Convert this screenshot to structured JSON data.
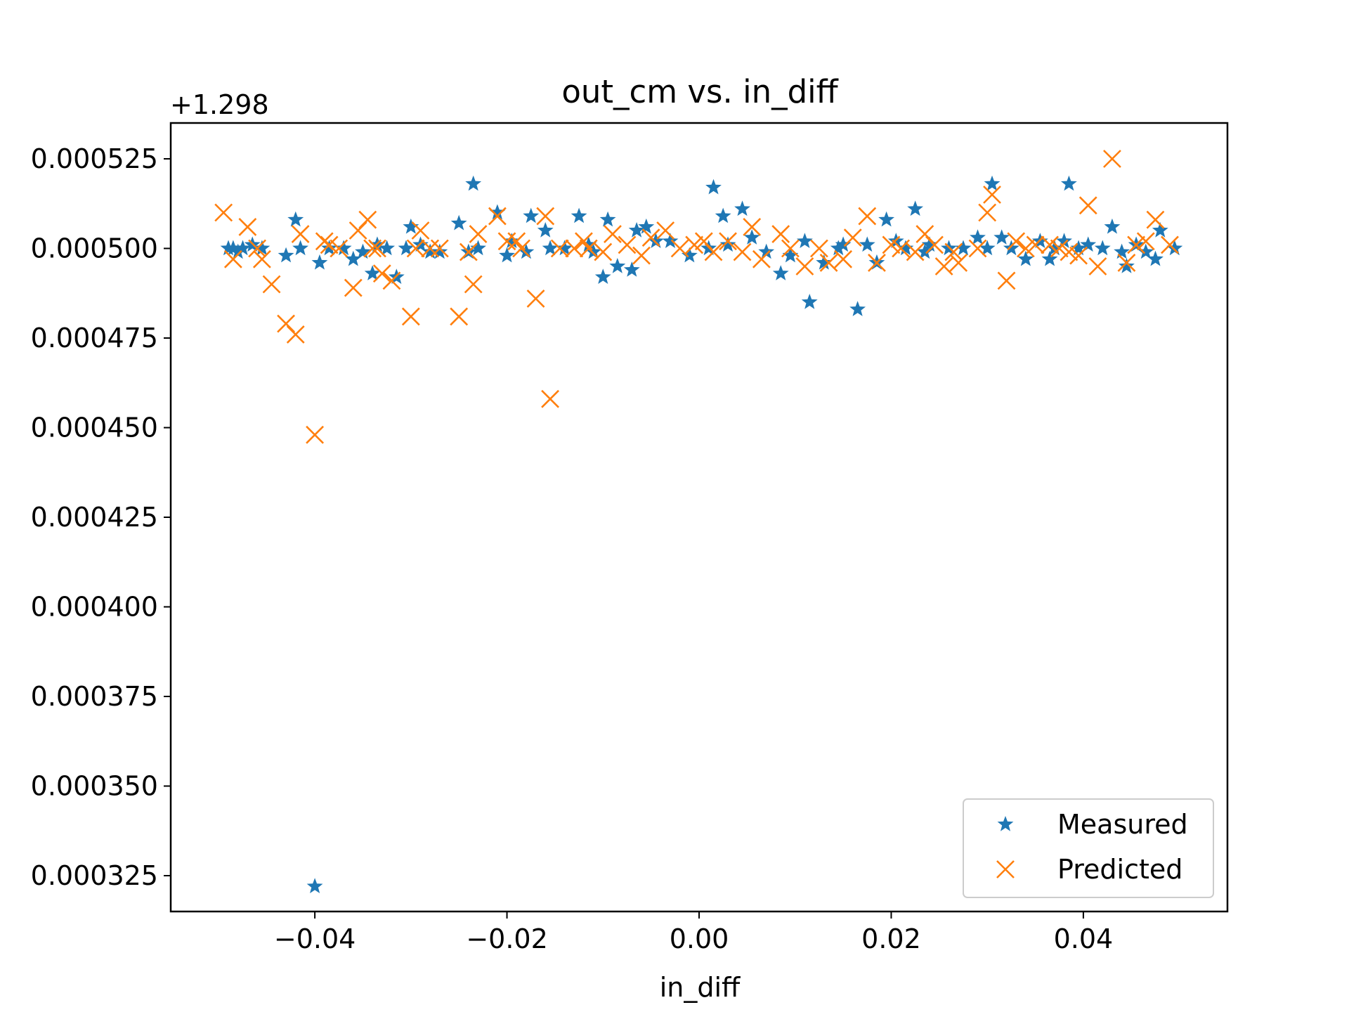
{
  "chart_data": {
    "type": "scatter",
    "title": "out_cm vs. in_diff",
    "xlabel": "in_diff",
    "ylabel": "",
    "y_offset_label": "+1.298",
    "xlim": [
      -0.055,
      0.055
    ],
    "ylim": [
      0.000315,
      0.000535
    ],
    "x_ticks": [
      -0.04,
      -0.02,
      0.0,
      0.02,
      0.04
    ],
    "x_tick_labels": [
      "−0.04",
      "−0.02",
      "0.00",
      "0.02",
      "0.04"
    ],
    "y_ticks": [
      0.000325,
      0.00035,
      0.000375,
      0.0004,
      0.000425,
      0.00045,
      0.000475,
      0.0005,
      0.000525
    ],
    "y_tick_labels": [
      "0.000325",
      "0.000350",
      "0.000375",
      "0.000400",
      "0.000425",
      "0.000450",
      "0.000475",
      "0.000500",
      "0.000525"
    ],
    "legend_position": "lower-right",
    "series": [
      {
        "name": "Measured",
        "marker": "star",
        "color": "#1f77b4",
        "x": [
          -0.049,
          -0.0485,
          -0.048,
          -0.0475,
          -0.0465,
          -0.0455,
          -0.043,
          -0.042,
          -0.0415,
          -0.04,
          -0.0395,
          -0.0385,
          -0.037,
          -0.036,
          -0.035,
          -0.034,
          -0.0335,
          -0.0325,
          -0.0315,
          -0.0305,
          -0.03,
          -0.029,
          -0.028,
          -0.027,
          -0.025,
          -0.024,
          -0.0235,
          -0.023,
          -0.021,
          -0.02,
          -0.0195,
          -0.018,
          -0.0175,
          -0.016,
          -0.0155,
          -0.014,
          -0.0125,
          -0.0115,
          -0.011,
          -0.01,
          -0.0095,
          -0.0085,
          -0.007,
          -0.0065,
          -0.0055,
          -0.0045,
          -0.003,
          -0.001,
          0.001,
          0.0015,
          0.0025,
          0.003,
          0.0045,
          0.0055,
          0.007,
          0.0085,
          0.0095,
          0.011,
          0.0115,
          0.013,
          0.0145,
          0.015,
          0.0165,
          0.0175,
          0.0185,
          0.0195,
          0.0205,
          0.0215,
          0.0225,
          0.0235,
          0.024,
          0.026,
          0.0275,
          0.029,
          0.03,
          0.0305,
          0.0315,
          0.0325,
          0.034,
          0.0355,
          0.0365,
          0.037,
          0.038,
          0.0385,
          0.0395,
          0.0405,
          0.042,
          0.043,
          0.044,
          0.0445,
          0.0455,
          0.0465,
          0.0475,
          0.048,
          0.0495
        ],
        "y": [
          0.0005,
          0.0005,
          0.000499,
          0.0005,
          0.000501,
          0.0005,
          0.000498,
          0.000508,
          0.0005,
          0.000322,
          0.000496,
          0.0005,
          0.0005,
          0.000497,
          0.000499,
          0.000493,
          0.000501,
          0.0005,
          0.000492,
          0.0005,
          0.000506,
          0.000501,
          0.000499,
          0.000499,
          0.000507,
          0.000499,
          0.000518,
          0.0005,
          0.00051,
          0.000498,
          0.000502,
          0.000499,
          0.000509,
          0.000505,
          0.0005,
          0.0005,
          0.000509,
          0.000501,
          0.000499,
          0.000492,
          0.000508,
          0.000495,
          0.000494,
          0.000505,
          0.000506,
          0.000502,
          0.000502,
          0.000498,
          0.0005,
          0.000517,
          0.000509,
          0.000501,
          0.000511,
          0.000503,
          0.000499,
          0.000493,
          0.000498,
          0.000502,
          0.000485,
          0.000496,
          0.0005,
          0.000501,
          0.000483,
          0.000501,
          0.000496,
          0.000508,
          0.000502,
          0.0005,
          0.000511,
          0.000499,
          0.000501,
          0.0005,
          0.0005,
          0.000503,
          0.0005,
          0.000518,
          0.000503,
          0.0005,
          0.000497,
          0.000502,
          0.000497,
          0.0005,
          0.000502,
          0.000518,
          0.0005,
          0.000501,
          0.0005,
          0.000506,
          0.000499,
          0.000495,
          0.000501,
          0.000499,
          0.000497,
          0.000505,
          0.0005
        ]
      },
      {
        "name": "Predicted",
        "marker": "x",
        "color": "#ff7f0e",
        "x": [
          -0.0495,
          -0.0485,
          -0.047,
          -0.046,
          -0.0455,
          -0.0445,
          -0.043,
          -0.042,
          -0.0415,
          -0.04,
          -0.039,
          -0.0385,
          -0.0375,
          -0.036,
          -0.0355,
          -0.0345,
          -0.034,
          -0.0335,
          -0.033,
          -0.032,
          -0.03,
          -0.0295,
          -0.029,
          -0.028,
          -0.027,
          -0.025,
          -0.024,
          -0.0235,
          -0.023,
          -0.021,
          -0.02,
          -0.019,
          -0.0185,
          -0.017,
          -0.016,
          -0.0155,
          -0.0145,
          -0.013,
          -0.012,
          -0.0115,
          -0.01,
          -0.009,
          -0.0075,
          -0.006,
          -0.005,
          -0.0035,
          -0.002,
          -0.0005,
          0.0005,
          0.0015,
          0.003,
          0.0045,
          0.0055,
          0.0065,
          0.0085,
          0.0095,
          0.011,
          0.0125,
          0.0135,
          0.015,
          0.016,
          0.0175,
          0.0185,
          0.02,
          0.021,
          0.0225,
          0.0235,
          0.0245,
          0.0255,
          0.0265,
          0.027,
          0.029,
          0.03,
          0.0305,
          0.032,
          0.033,
          0.034,
          0.035,
          0.0365,
          0.0375,
          0.0385,
          0.0395,
          0.0405,
          0.0415,
          0.043,
          0.0445,
          0.0455,
          0.0465,
          0.0475,
          0.049
        ],
        "y": [
          0.00051,
          0.000497,
          0.000506,
          0.0005,
          0.000497,
          0.00049,
          0.000479,
          0.000476,
          0.000504,
          0.000448,
          0.000502,
          0.000501,
          0.0005,
          0.000489,
          0.000505,
          0.000508,
          0.0005,
          0.0005,
          0.000493,
          0.000491,
          0.000481,
          0.0005,
          0.000505,
          0.0005,
          0.0005,
          0.000481,
          0.000499,
          0.00049,
          0.000504,
          0.000509,
          0.000502,
          0.000502,
          0.0005,
          0.000486,
          0.000509,
          0.000458,
          0.0005,
          0.0005,
          0.000502,
          0.0005,
          0.000499,
          0.000504,
          0.000501,
          0.000498,
          0.000503,
          0.000505,
          0.0005,
          0.000501,
          0.000502,
          0.000499,
          0.000502,
          0.000499,
          0.000506,
          0.000497,
          0.000504,
          0.0005,
          0.000495,
          0.0005,
          0.000496,
          0.000497,
          0.000503,
          0.000509,
          0.000496,
          0.000501,
          0.0005,
          0.000499,
          0.000504,
          0.000501,
          0.000495,
          0.000499,
          0.000496,
          0.0005,
          0.00051,
          0.000515,
          0.000491,
          0.000502,
          0.0005,
          0.000501,
          0.000501,
          0.0005,
          0.000499,
          0.000498,
          0.000512,
          0.000495,
          0.000525,
          0.000496,
          0.000501,
          0.000502,
          0.000508,
          0.000501
        ]
      }
    ]
  }
}
